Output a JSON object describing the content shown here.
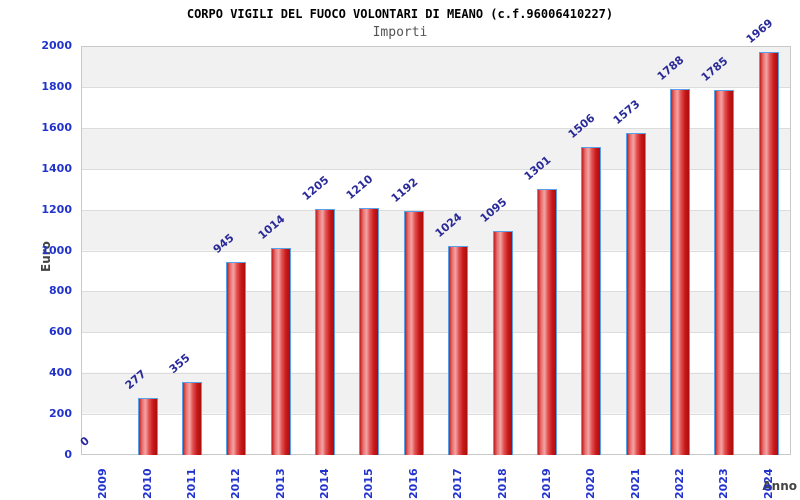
{
  "chart_data": {
    "type": "bar",
    "title": "CORPO VIGILI DEL FUOCO VOLONTARI DI MEANO (c.f.96006410227)",
    "subtitle": "Importi",
    "xlabel": "Anno",
    "ylabel": "Euro",
    "categories": [
      "2009",
      "2010",
      "2011",
      "2012",
      "2013",
      "2014",
      "2015",
      "2016",
      "2017",
      "2018",
      "2019",
      "2020",
      "2021",
      "2022",
      "2023",
      "2024"
    ],
    "values": [
      0,
      277,
      355,
      945,
      1014,
      1205,
      1210,
      1192,
      1024,
      1095,
      1301,
      1506,
      1573,
      1788,
      1785,
      1969
    ],
    "ylim": [
      0,
      2000
    ],
    "ytick_step": 200,
    "grid": "horizontal-bands-alternating",
    "legend": "none",
    "colors": {
      "tick_label": "#2233cc",
      "value_label": "#2a2a99",
      "bar_border": "#58a0e8",
      "bar_gradient_stops": [
        "#c02020 0%",
        "#e87070 18%",
        "#f4a4a4 36%",
        "#e25050 55%",
        "#c41616 80%",
        "#ae0e0e 100%"
      ],
      "band_gray": "#f1f1f1",
      "band_white": "#ffffff",
      "gridline": "#dcdcdc",
      "plot_border": "#c9c9c9",
      "title_color": "#000000",
      "subtitle_color": "#555555",
      "axis_title_color": "#444444"
    }
  }
}
